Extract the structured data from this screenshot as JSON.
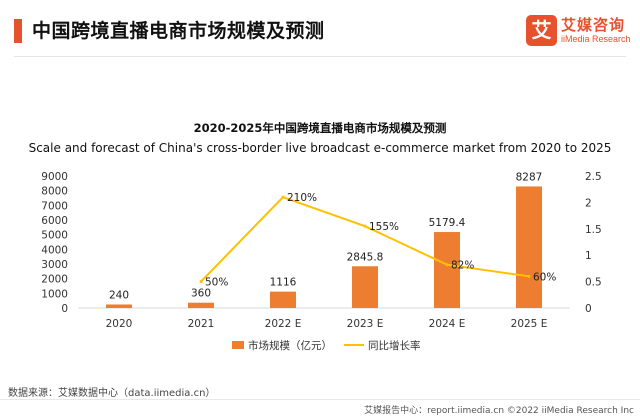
{
  "header": {
    "title": "中国跨境直播电商市场规模及预测",
    "logo_mark": "艾",
    "logo_cn": "艾媒咨询",
    "logo_en": "iiMedia Research"
  },
  "colors": {
    "accent": "#e8512e",
    "bar": "#ed7d31",
    "line": "#ffc000"
  },
  "chart_data": {
    "type": "bar",
    "title": "2020-2025年中国跨境直播电商市场规模及预测",
    "subtitle": "Scale and forecast of China's cross-border live broadcast e-commerce market from 2020 to 2025",
    "categories": [
      "2020",
      "2021",
      "2022 E",
      "2023 E",
      "2024 E",
      "2025 E"
    ],
    "series": [
      {
        "name": "市场规模（亿元）",
        "type": "bar",
        "axis": "left",
        "values": [
          240,
          360,
          1116,
          2845.8,
          5179.4,
          8287
        ],
        "labels": [
          "240",
          "360",
          "1116",
          "2845.8",
          "5179.4",
          "8287"
        ]
      },
      {
        "name": "同比增长率",
        "type": "line",
        "axis": "right",
        "values": [
          null,
          0.5,
          2.1,
          1.55,
          0.82,
          0.6
        ],
        "labels": [
          "",
          "50%",
          "210%",
          "155%",
          "82%",
          "60%"
        ]
      }
    ],
    "y_left": {
      "range": [
        0,
        9000
      ],
      "ticks": [
        "0",
        "1000",
        "2000",
        "3000",
        "4000",
        "5000",
        "6000",
        "7000",
        "8000",
        "9000"
      ]
    },
    "y_right": {
      "range": [
        0,
        2.5
      ],
      "ticks": [
        "0",
        "0.5",
        "1",
        "1.5",
        "2",
        "2.5"
      ]
    },
    "grid": false,
    "legend_position": "bottom"
  },
  "source_text": "数据来源：艾媒数据中心（data.iimedia.cn）",
  "footer_text": "艾媒报告中心：report.iimedia.cn  ©2022 iiMedia Research Inc"
}
